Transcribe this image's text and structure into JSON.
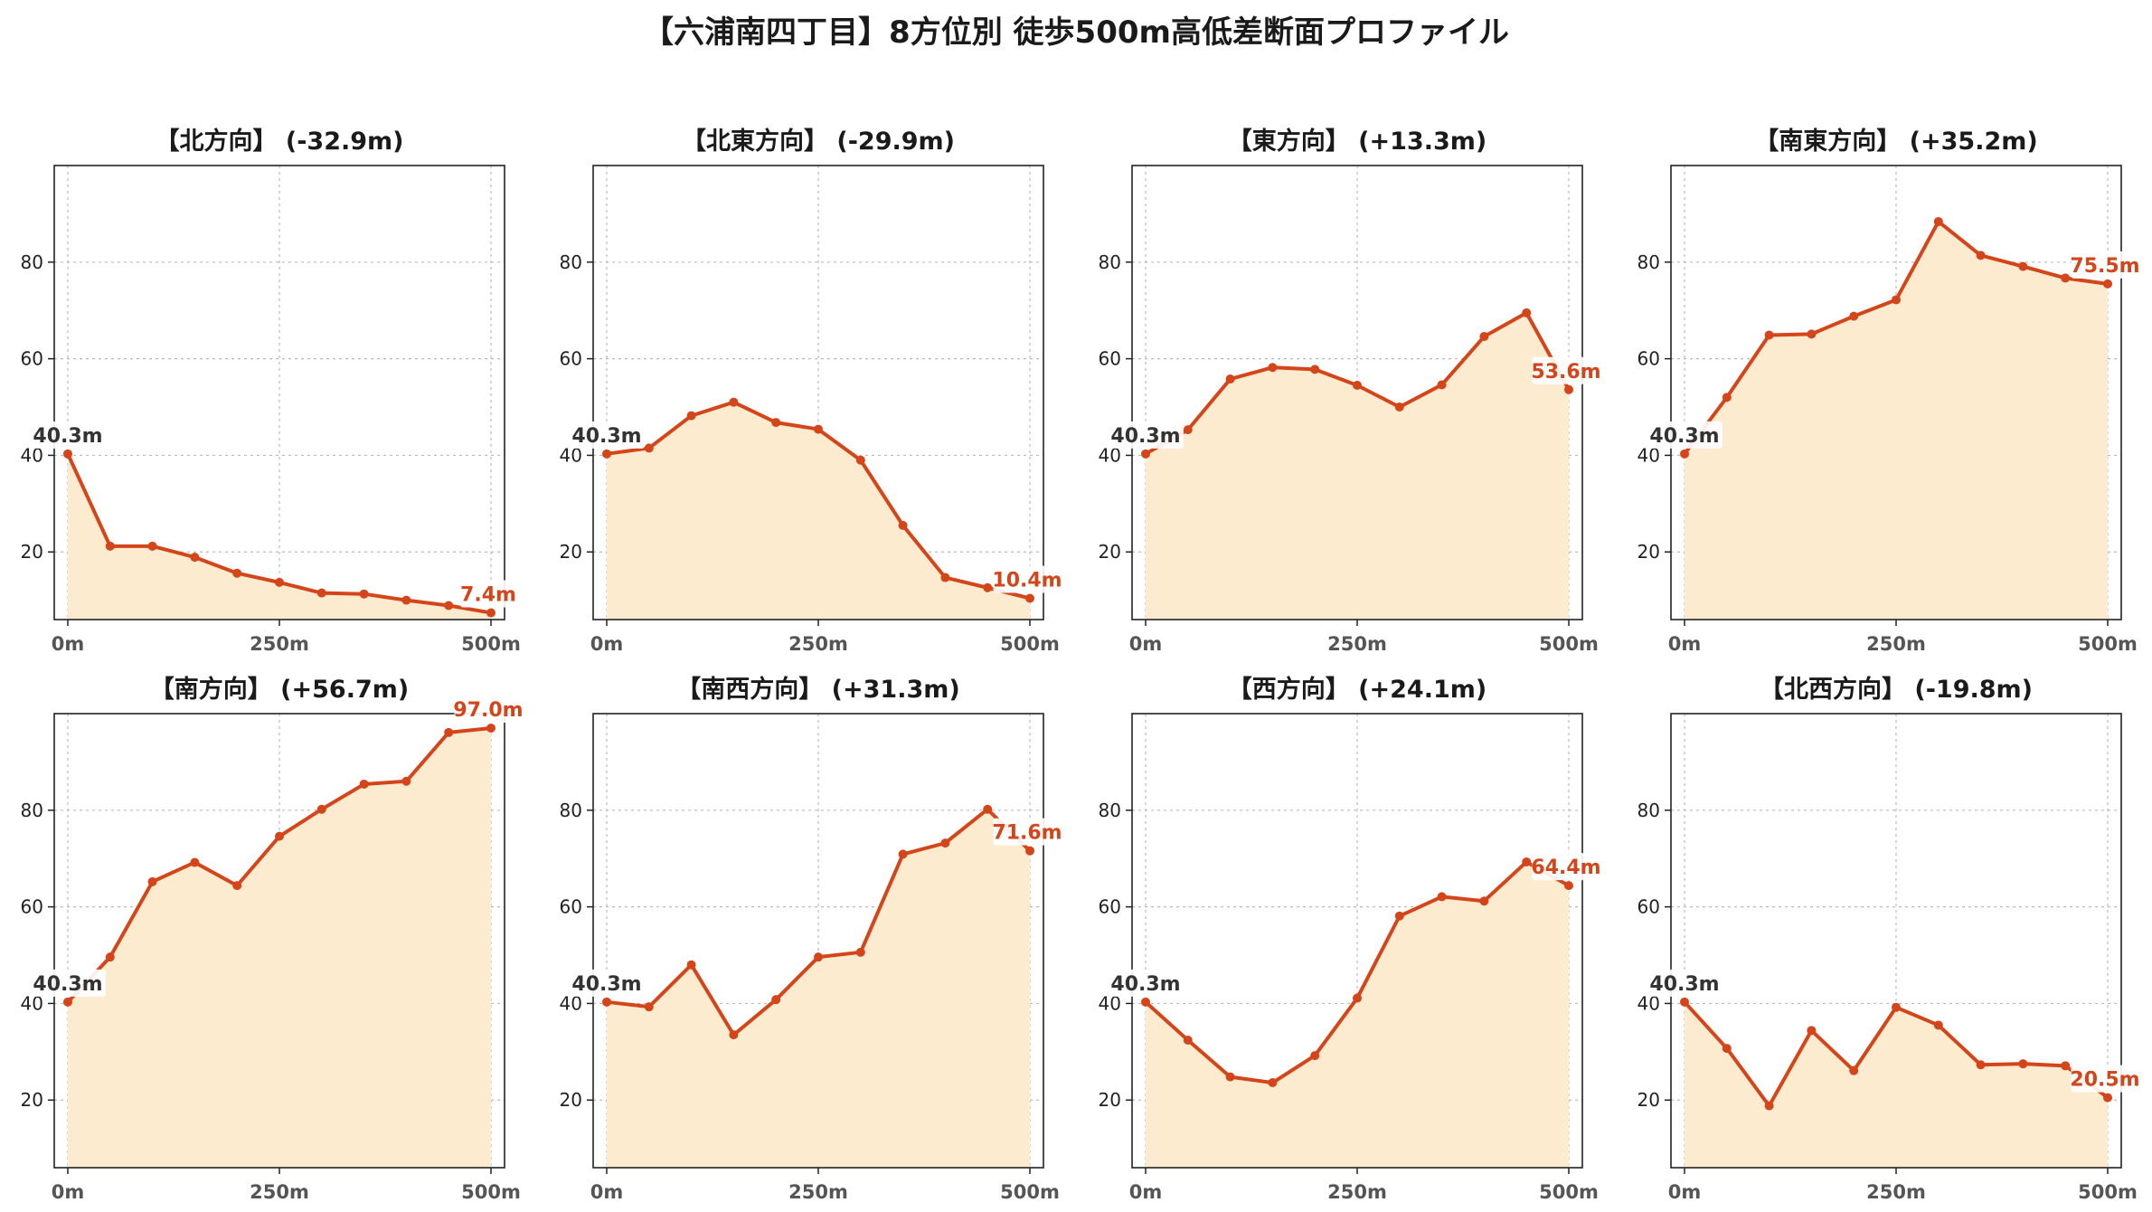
{
  "title": "【六浦南四丁目】8方位別 徒歩500m高低差断面プロファイル",
  "colors": {
    "line": "#d4451a",
    "fill": "#fdebd0",
    "start_label": "#333333",
    "end_label": "#d4451a",
    "grid": "#bbbbbb"
  },
  "chart_data": [
    {
      "type": "area",
      "title": "【北方向】 (-32.9m)",
      "x": [
        0,
        50,
        100,
        150,
        200,
        250,
        300,
        350,
        400,
        450,
        500
      ],
      "y": [
        40.3,
        21.2,
        21.2,
        18.9,
        15.6,
        13.7,
        11.5,
        11.3,
        10.0,
        8.9,
        7.4
      ],
      "xticks": [
        "0m",
        "250m",
        "500m"
      ],
      "yticks": [
        "20",
        "40",
        "60",
        "80"
      ],
      "xlim": [
        0,
        500
      ],
      "ylim": [
        6,
        100
      ],
      "grid": true,
      "start_label": "40.3m",
      "end_label": "7.4m"
    },
    {
      "type": "area",
      "title": "【北東方向】 (-29.9m)",
      "x": [
        0,
        50,
        100,
        150,
        200,
        250,
        300,
        350,
        400,
        450,
        500
      ],
      "y": [
        40.3,
        41.5,
        48.2,
        51.0,
        46.8,
        45.4,
        39.0,
        25.5,
        14.7,
        12.6,
        10.4
      ],
      "xticks": [
        "0m",
        "250m",
        "500m"
      ],
      "yticks": [
        "20",
        "40",
        "60",
        "80"
      ],
      "xlim": [
        0,
        500
      ],
      "ylim": [
        6,
        100
      ],
      "grid": true,
      "start_label": "40.3m",
      "end_label": "10.4m"
    },
    {
      "type": "area",
      "title": "【東方向】 (+13.3m)",
      "x": [
        0,
        50,
        100,
        150,
        200,
        250,
        300,
        350,
        400,
        450,
        500
      ],
      "y": [
        40.3,
        45.3,
        55.8,
        58.2,
        57.8,
        54.5,
        50.0,
        54.6,
        64.6,
        69.5,
        53.6
      ],
      "xticks": [
        "0m",
        "250m",
        "500m"
      ],
      "yticks": [
        "20",
        "40",
        "60",
        "80"
      ],
      "xlim": [
        0,
        500
      ],
      "ylim": [
        6,
        100
      ],
      "grid": true,
      "start_label": "40.3m",
      "end_label": "53.6m"
    },
    {
      "type": "area",
      "title": "【南東方向】 (+35.2m)",
      "x": [
        0,
        50,
        100,
        150,
        200,
        250,
        300,
        350,
        400,
        450,
        500
      ],
      "y": [
        40.3,
        52.0,
        64.9,
        65.1,
        68.8,
        72.2,
        88.4,
        81.4,
        79.1,
        76.7,
        75.5
      ],
      "xticks": [
        "0m",
        "250m",
        "500m"
      ],
      "yticks": [
        "20",
        "40",
        "60",
        "80"
      ],
      "xlim": [
        0,
        500
      ],
      "ylim": [
        6,
        100
      ],
      "grid": true,
      "start_label": "40.3m",
      "end_label": "75.5m"
    },
    {
      "type": "area",
      "title": "【南方向】 (+56.7m)",
      "x": [
        0,
        50,
        100,
        150,
        200,
        250,
        300,
        350,
        400,
        450,
        500
      ],
      "y": [
        40.3,
        49.6,
        65.2,
        69.2,
        64.4,
        74.6,
        80.2,
        85.4,
        86.0,
        96.1,
        97.0
      ],
      "xticks": [
        "0m",
        "250m",
        "500m"
      ],
      "yticks": [
        "20",
        "40",
        "60",
        "80"
      ],
      "xlim": [
        0,
        500
      ],
      "ylim": [
        6,
        100
      ],
      "grid": true,
      "start_label": "40.3m",
      "end_label": "97.0m"
    },
    {
      "type": "area",
      "title": "【南西方向】 (+31.3m)",
      "x": [
        0,
        50,
        100,
        150,
        200,
        250,
        300,
        350,
        400,
        450,
        500
      ],
      "y": [
        40.3,
        39.3,
        48.0,
        33.5,
        40.8,
        49.6,
        50.6,
        70.9,
        73.2,
        80.2,
        71.6
      ],
      "xticks": [
        "0m",
        "250m",
        "500m"
      ],
      "yticks": [
        "20",
        "40",
        "60",
        "80"
      ],
      "xlim": [
        0,
        500
      ],
      "ylim": [
        6,
        100
      ],
      "grid": true,
      "start_label": "40.3m",
      "end_label": "71.6m"
    },
    {
      "type": "area",
      "title": "【西方向】 (+24.1m)",
      "x": [
        0,
        50,
        100,
        150,
        200,
        250,
        300,
        350,
        400,
        450,
        500
      ],
      "y": [
        40.3,
        32.4,
        24.8,
        23.6,
        29.2,
        41.1,
        58.1,
        62.1,
        61.2,
        69.3,
        64.4
      ],
      "xticks": [
        "0m",
        "250m",
        "500m"
      ],
      "yticks": [
        "20",
        "40",
        "60",
        "80"
      ],
      "xlim": [
        0,
        500
      ],
      "ylim": [
        6,
        100
      ],
      "grid": true,
      "start_label": "40.3m",
      "end_label": "64.4m"
    },
    {
      "type": "area",
      "title": "【北西方向】 (-19.8m)",
      "x": [
        0,
        50,
        100,
        150,
        200,
        250,
        300,
        350,
        400,
        450,
        500
      ],
      "y": [
        40.3,
        30.7,
        18.8,
        34.4,
        26.1,
        39.2,
        35.5,
        27.3,
        27.5,
        27.1,
        20.5
      ],
      "xticks": [
        "0m",
        "250m",
        "500m"
      ],
      "yticks": [
        "20",
        "40",
        "60",
        "80"
      ],
      "xlim": [
        0,
        500
      ],
      "ylim": [
        6,
        100
      ],
      "grid": true,
      "start_label": "40.3m",
      "end_label": "20.5m"
    }
  ]
}
